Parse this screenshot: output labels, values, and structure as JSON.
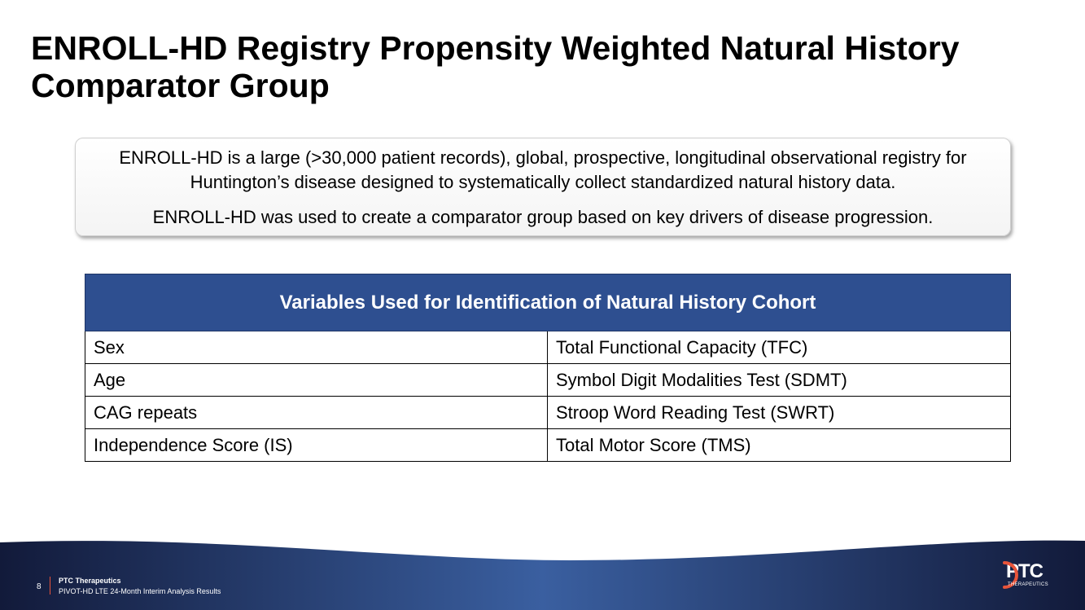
{
  "slide": {
    "title": "ENROLL-HD Registry Propensity Weighted Natural History Comparator Group"
  },
  "intro": {
    "paragraph1": "ENROLL-HD is a large (>30,000 patient records), global, prospective, longitudinal observational registry for Huntington’s disease designed to systematically collect standardized natural history data.",
    "paragraph2": "ENROLL-HD was used to create a comparator group based on key drivers of disease progression."
  },
  "table": {
    "header": "Variables Used for Identification of Natural History Cohort",
    "rows": [
      [
        "Sex",
        "Total Functional Capacity (TFC)"
      ],
      [
        "Age",
        "Symbol Digit Modalities Test (SDMT)"
      ],
      [
        "CAG repeats",
        "Stroop Word Reading Test (SWRT)"
      ],
      [
        "Independence Score (IS)",
        "Total Motor Score (TMS)"
      ]
    ]
  },
  "footer": {
    "page_number": "8",
    "company": "PTC Therapeutics",
    "subtitle": "PIVOT-HD LTE 24-Month Interim Analysis Results",
    "logo_text": "PTC",
    "logo_subtext": "THERAPEUTICS",
    "logo_icon": "ptc-logo-arc-icon"
  },
  "colors": {
    "table_header": "#2e4f90",
    "footer_dark": "#121a3a",
    "footer_light": "#3a5fa0",
    "accent": "#e8543a"
  }
}
